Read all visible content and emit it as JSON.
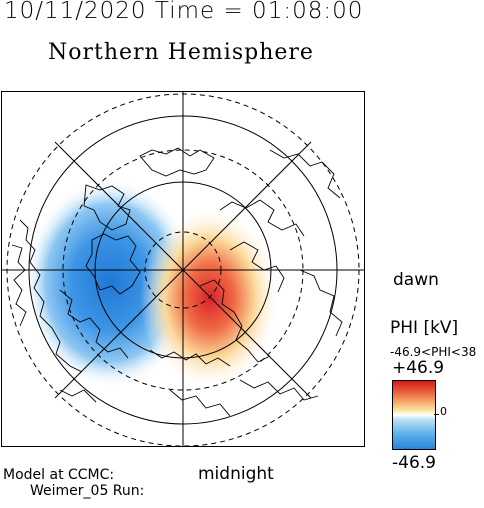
{
  "header": {
    "date_time": "10/11/2020 Time = 01:08:00",
    "title": "Northern Hemisphere"
  },
  "map": {
    "projection": "polar stereographic, north pole centred",
    "dawn_label": "dawn",
    "midnight_label": "midnight",
    "potential_cells": [
      {
        "sign": "negative",
        "color": "#2b83d6"
      },
      {
        "sign": "positive",
        "color": "#d7191c"
      }
    ]
  },
  "colorbar": {
    "quantity": "PHI [kV]",
    "range_text": "-46.9<PHI<38",
    "max": "+46.9",
    "zero": "0",
    "min": "-46.9",
    "colors": {
      "max": "#d7191c",
      "mid": "#ffffff",
      "min": "#2b83d6"
    }
  },
  "footer": {
    "line1": "Model at CCMC:",
    "line2": "Weimer_05 Run:"
  }
}
